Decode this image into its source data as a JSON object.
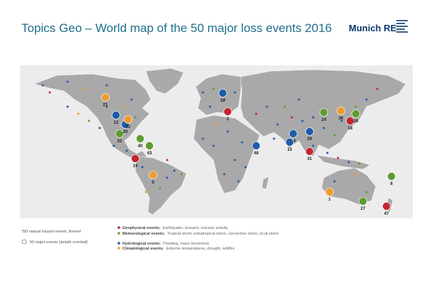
{
  "header": {
    "title": "Topics Geo – World map of the 50 major loss events 2016",
    "logo": "Munich RE"
  },
  "legend": {
    "total": "750 natural hazard events, thereof",
    "major": "50 major events (details overleaf)",
    "items": [
      {
        "title": "Geophysical events:",
        "text": "Earthquake, tsunami, volcanic activity",
        "color": "#c4262e",
        "events": [
          "19",
          "47",
          "18",
          "31",
          "2"
        ]
      },
      {
        "title": "Meteorological events:",
        "text": "Tropical storm, extratropical storm, convective storm, local storm",
        "color": "#5d9c2e",
        "events": [
          "40",
          "33",
          "43",
          "27",
          "8",
          "26",
          "24"
        ]
      },
      {
        "title": "Hydrological events:",
        "text": "Flooding, mass movement",
        "color": "#1d5ca8",
        "events": [
          "13",
          "22",
          "14",
          "15",
          "29",
          "48",
          "20"
        ]
      },
      {
        "title": "Climatological events:",
        "text": "Extreme temperatures, drought, wildfire",
        "color": "#f09a2c",
        "events": [
          "21",
          "36",
          "1",
          "32",
          "5"
        ]
      }
    ]
  }
}
